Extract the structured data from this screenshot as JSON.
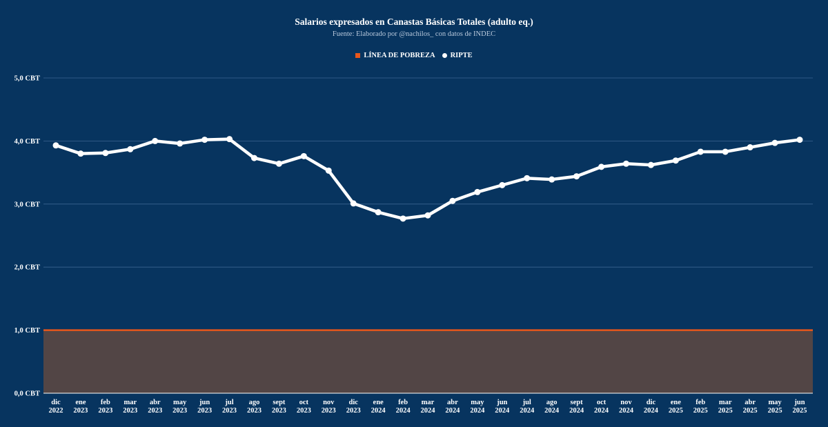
{
  "chart_data": {
    "type": "line",
    "title": "Salarios expresados en Canastas Básicas Totales (adulto eq.)",
    "subtitle": "Fuente: Elaborado por @nachilos_ con datos de INDEC",
    "legend": [
      {
        "name": "LÍNEA DE POBREZA",
        "color": "#e8561b",
        "marker": "square"
      },
      {
        "name": "RIPTE",
        "color": "#ffffff",
        "marker": "circle"
      }
    ],
    "legend_position": "top-center",
    "ylim": [
      0,
      5
    ],
    "yticks": [
      0,
      1,
      2,
      3,
      4,
      5
    ],
    "ytick_labels": [
      "0,0 CBT",
      "1,0 CBT",
      "2,0 CBT",
      "3,0 CBT",
      "4,0 CBT",
      "5,0 CBT"
    ],
    "grid": true,
    "categories": [
      {
        "month": "dic",
        "year": "2022"
      },
      {
        "month": "ene",
        "year": "2023"
      },
      {
        "month": "feb",
        "year": "2023"
      },
      {
        "month": "mar",
        "year": "2023"
      },
      {
        "month": "abr",
        "year": "2023"
      },
      {
        "month": "may",
        "year": "2023"
      },
      {
        "month": "jun",
        "year": "2023"
      },
      {
        "month": "jul",
        "year": "2023"
      },
      {
        "month": "ago",
        "year": "2023"
      },
      {
        "month": "sept",
        "year": "2023"
      },
      {
        "month": "oct",
        "year": "2023"
      },
      {
        "month": "nov",
        "year": "2023"
      },
      {
        "month": "dic",
        "year": "2023"
      },
      {
        "month": "ene",
        "year": "2024"
      },
      {
        "month": "feb",
        "year": "2024"
      },
      {
        "month": "mar",
        "year": "2024"
      },
      {
        "month": "abr",
        "year": "2024"
      },
      {
        "month": "may",
        "year": "2024"
      },
      {
        "month": "jun",
        "year": "2024"
      },
      {
        "month": "jul",
        "year": "2024"
      },
      {
        "month": "ago",
        "year": "2024"
      },
      {
        "month": "sept",
        "year": "2024"
      },
      {
        "month": "oct",
        "year": "2024"
      },
      {
        "month": "nov",
        "year": "2024"
      },
      {
        "month": "dic",
        "year": "2024"
      },
      {
        "month": "ene",
        "year": "2025"
      },
      {
        "month": "feb",
        "year": "2025"
      },
      {
        "month": "mar",
        "year": "2025"
      },
      {
        "month": "abr",
        "year": "2025"
      },
      {
        "month": "may",
        "year": "2025"
      },
      {
        "month": "jun",
        "year": "2025"
      }
    ],
    "series": [
      {
        "name": "RIPTE",
        "type": "line",
        "color": "#ffffff",
        "values": [
          3.93,
          3.8,
          3.81,
          3.87,
          4.0,
          3.96,
          4.02,
          4.03,
          3.73,
          3.64,
          3.76,
          3.53,
          3.01,
          2.87,
          2.77,
          2.82,
          3.05,
          3.19,
          3.3,
          3.41,
          3.39,
          3.44,
          3.59,
          3.64,
          3.62,
          3.69,
          3.83,
          3.83,
          3.9,
          3.97,
          4.02
        ]
      },
      {
        "name": "LÍNEA DE POBREZA",
        "type": "area",
        "color": "#e8561b",
        "fill_color": "#524545",
        "values": [
          1,
          1,
          1,
          1,
          1,
          1,
          1,
          1,
          1,
          1,
          1,
          1,
          1,
          1,
          1,
          1,
          1,
          1,
          1,
          1,
          1,
          1,
          1,
          1,
          1,
          1,
          1,
          1,
          1,
          1,
          1
        ]
      }
    ]
  }
}
